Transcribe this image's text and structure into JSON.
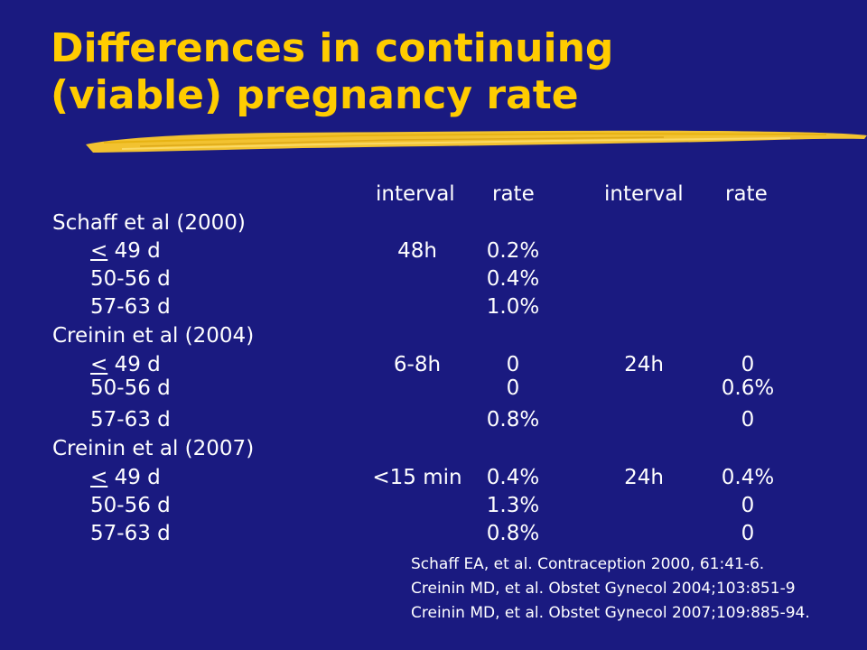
{
  "title": {
    "line1": "Differences in continuing",
    "line2": "(viable) pregnancy rate"
  },
  "colors": {
    "background": "#1a1a80",
    "title": "#ffcc00",
    "brush": "#f2c230",
    "text": "#ffffff"
  },
  "table": {
    "headers": [
      "interval",
      "rate",
      "interval",
      "rate"
    ],
    "studies": [
      {
        "name": "Schaff et al (2000)",
        "rows": [
          {
            "lt": "<",
            "age": " 49 d",
            "interval1": "48h",
            "rate1": "0.2%",
            "interval2": "",
            "rate2": ""
          },
          {
            "lt": "",
            "age": "50-56 d",
            "interval1": "",
            "rate1": "0.4%",
            "interval2": "",
            "rate2": ""
          },
          {
            "lt": "",
            "age": "57-63 d",
            "interval1": "",
            "rate1": "1.0%",
            "interval2": "",
            "rate2": ""
          }
        ]
      },
      {
        "name": "Creinin et al (2004)",
        "rows": [
          {
            "lt": "<",
            "age": " 49 d",
            "interval1": "6-8h",
            "rate1": "0",
            "interval2": "24h",
            "rate2": "0"
          },
          {
            "lt": "",
            "age": "50-56 d",
            "interval1": "",
            "rate1": "0",
            "interval2": "",
            "rate2": "0.6%"
          },
          {
            "lt": "",
            "age": "57-63 d",
            "interval1": "",
            "rate1": "0.8%",
            "interval2": "",
            "rate2": "0"
          }
        ]
      },
      {
        "name": "Creinin et al (2007)",
        "rows": [
          {
            "lt": "<",
            "age": " 49 d",
            "interval1": "<15 min",
            "rate1": "0.4%",
            "interval2": "24h",
            "rate2": "0.4%"
          },
          {
            "lt": "",
            "age": "50-56 d",
            "interval1": "",
            "rate1": "1.3%",
            "interval2": "",
            "rate2": "0"
          },
          {
            "lt": "",
            "age": "57-63 d",
            "interval1": "",
            "rate1": "0.8%",
            "interval2": "",
            "rate2": "0"
          }
        ]
      }
    ]
  },
  "references": [
    "Schaff EA, et al.  Contraception 2000, 61:41-6.",
    "Creinin MD, et al. Obstet Gynecol 2004;103:851-9",
    "Creinin MD, et al. Obstet Gynecol 2007;109:885-94."
  ]
}
